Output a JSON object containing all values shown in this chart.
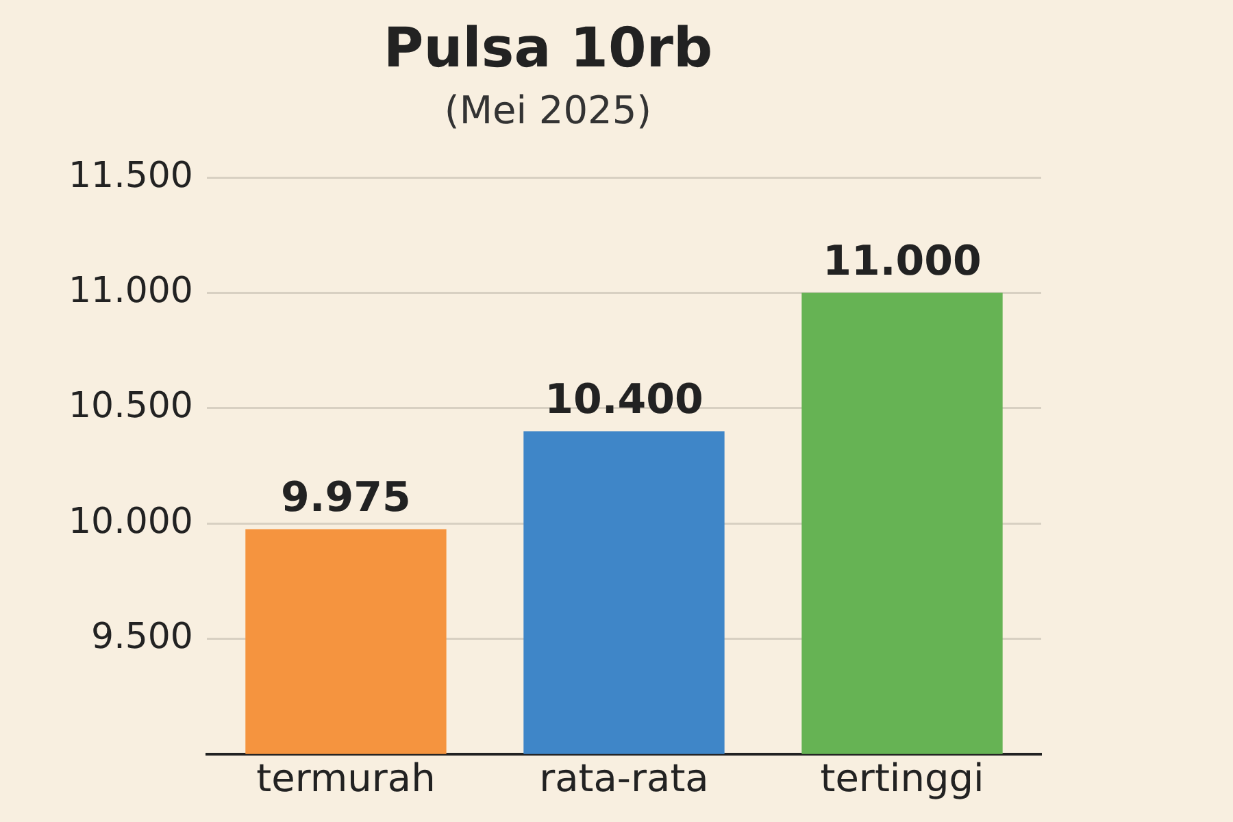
{
  "chart_data": {
    "type": "bar",
    "title": "Pulsa 10rb",
    "subtitle": "(Mei 2025)",
    "categories": [
      "termurah",
      "rata-rata",
      "tertinggi"
    ],
    "values": [
      9975,
      10400,
      11000
    ],
    "colors": [
      "#f5943f",
      "#3f86c8",
      "#66b354"
    ],
    "value_labels": [
      "9.975",
      "10.400",
      "11.000"
    ],
    "ylim": [
      9000,
      11500
    ],
    "yticks": [
      {
        "value": 9500,
        "label": "9.500"
      },
      {
        "value": 10000,
        "label": "10.000"
      },
      {
        "value": 10500,
        "label": "10.500"
      },
      {
        "value": 11000,
        "label": "11.000"
      },
      {
        "value": 11500,
        "label": "11.500"
      }
    ],
    "grid": "y"
  }
}
